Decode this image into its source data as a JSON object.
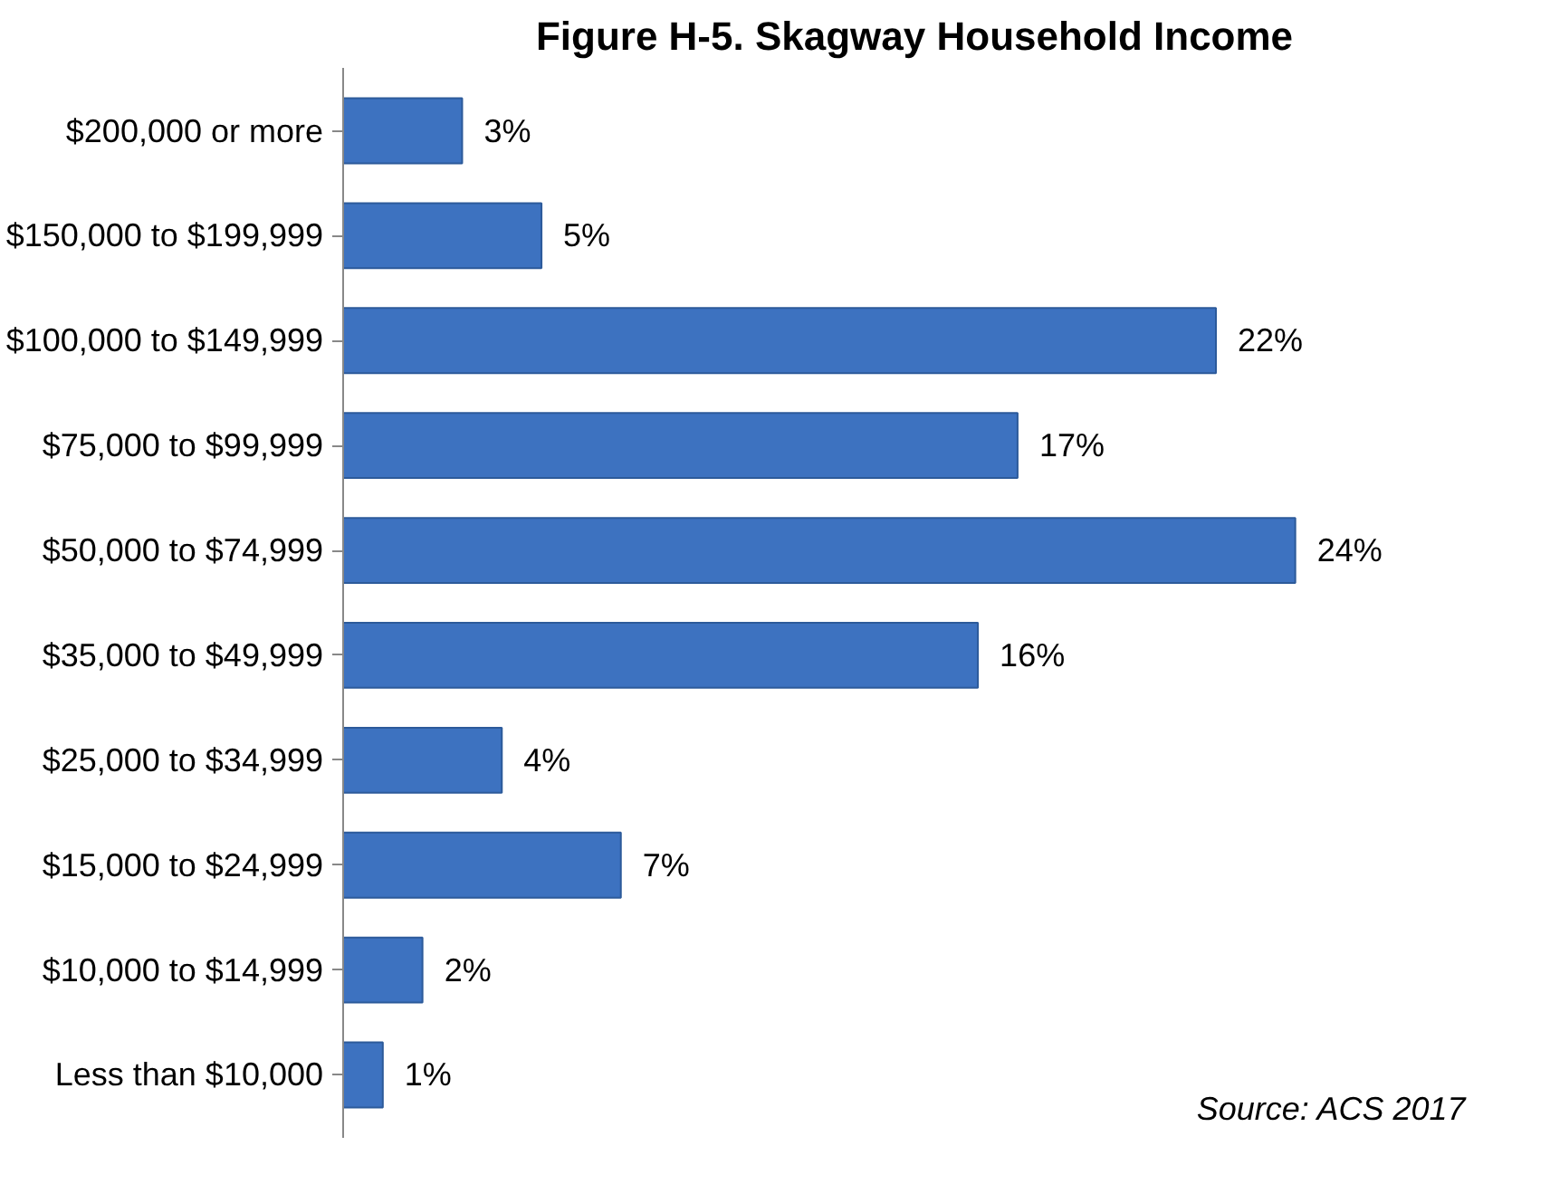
{
  "chart_data": {
    "type": "bar",
    "orientation": "horizontal",
    "title": "Figure H-5. Skagway Household Income",
    "categories": [
      "$200,000 or more",
      "$150,000 to $199,999",
      "$100,000 to $149,999",
      "$75,000 to $99,999",
      "$50,000 to $74,999",
      "$35,000 to $49,999",
      "$25,000 to $34,999",
      "$15,000 to $24,999",
      "$10,000 to $14,999",
      "Less than $10,000"
    ],
    "values": [
      3,
      5,
      22,
      17,
      24,
      16,
      4,
      7,
      2,
      1
    ],
    "value_labels": [
      "3%",
      "5%",
      "22%",
      "17%",
      "24%",
      "16%",
      "4%",
      "7%",
      "2%",
      "1%"
    ],
    "color": "#3d72c0",
    "annotations": [
      "Source: ACS 2017"
    ]
  }
}
